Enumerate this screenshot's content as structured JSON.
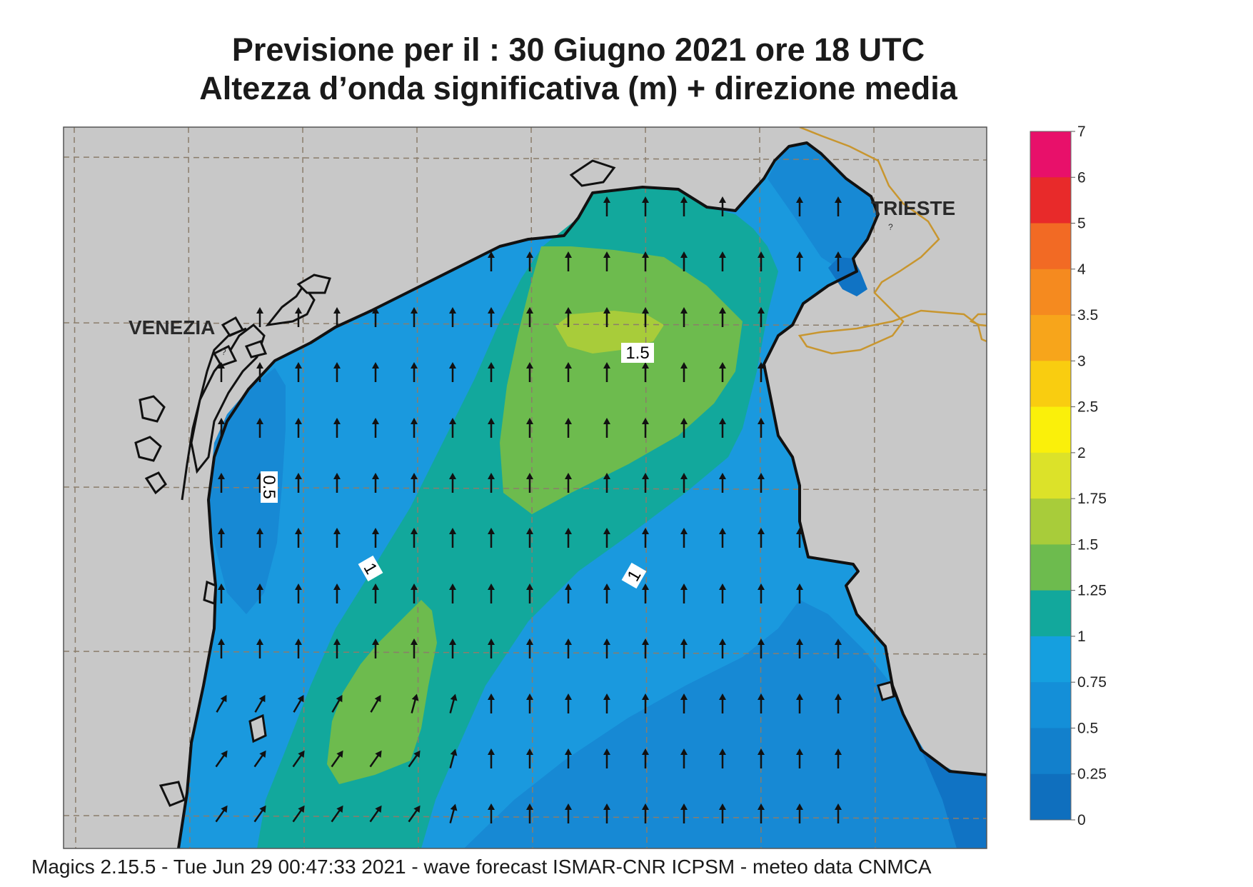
{
  "title": {
    "line1": "Previsione per il  :  30   Giugno  2021   ore 18 UTC",
    "line2": "Altezza d’onda significativa (m) + direzione media"
  },
  "cities": {
    "venezia": "VENEZIA",
    "trieste": "TRIESTE"
  },
  "contour_labels": {
    "label_1_5": "1.5",
    "label_1_left": "1",
    "label_1_right": "1",
    "label_0_5": "0.5"
  },
  "colorbar": {
    "ticks": [
      "7",
      "6",
      "5",
      "4",
      "3.5",
      "3",
      "2.5",
      "2",
      "1.75",
      "1.5",
      "1.25",
      "1",
      "0.75",
      "0.5",
      "0.25",
      "0"
    ],
    "colors": [
      "#e8106a",
      "#e82a2a",
      "#f26a24",
      "#f58a1f",
      "#f7a51b",
      "#f9cd10",
      "#faf00a",
      "#dce229",
      "#a8cc3a",
      "#6dbb4e",
      "#12a89c",
      "#159fdf",
      "#148fd8",
      "#1280cc",
      "#0f6fbe"
    ]
  },
  "legend_colors": {
    "sea_0_25": "#1073c4",
    "sea_0_5": "#1789d4",
    "sea_0_75": "#1a99de",
    "sea_1": "#12a89c",
    "sea_1_25": "#6dbb4e",
    "sea_1_5": "#a8cc3a",
    "land": "#c8c8c8",
    "coast": "#111111",
    "border": "#c8962f"
  },
  "wave_direction": "north",
  "footer": "Magics 2.15.5 - Tue Jun 29 00:47:33 2021 - wave forecast  ISMAR-CNR  ICPSM - meteo data   CNMCA"
}
